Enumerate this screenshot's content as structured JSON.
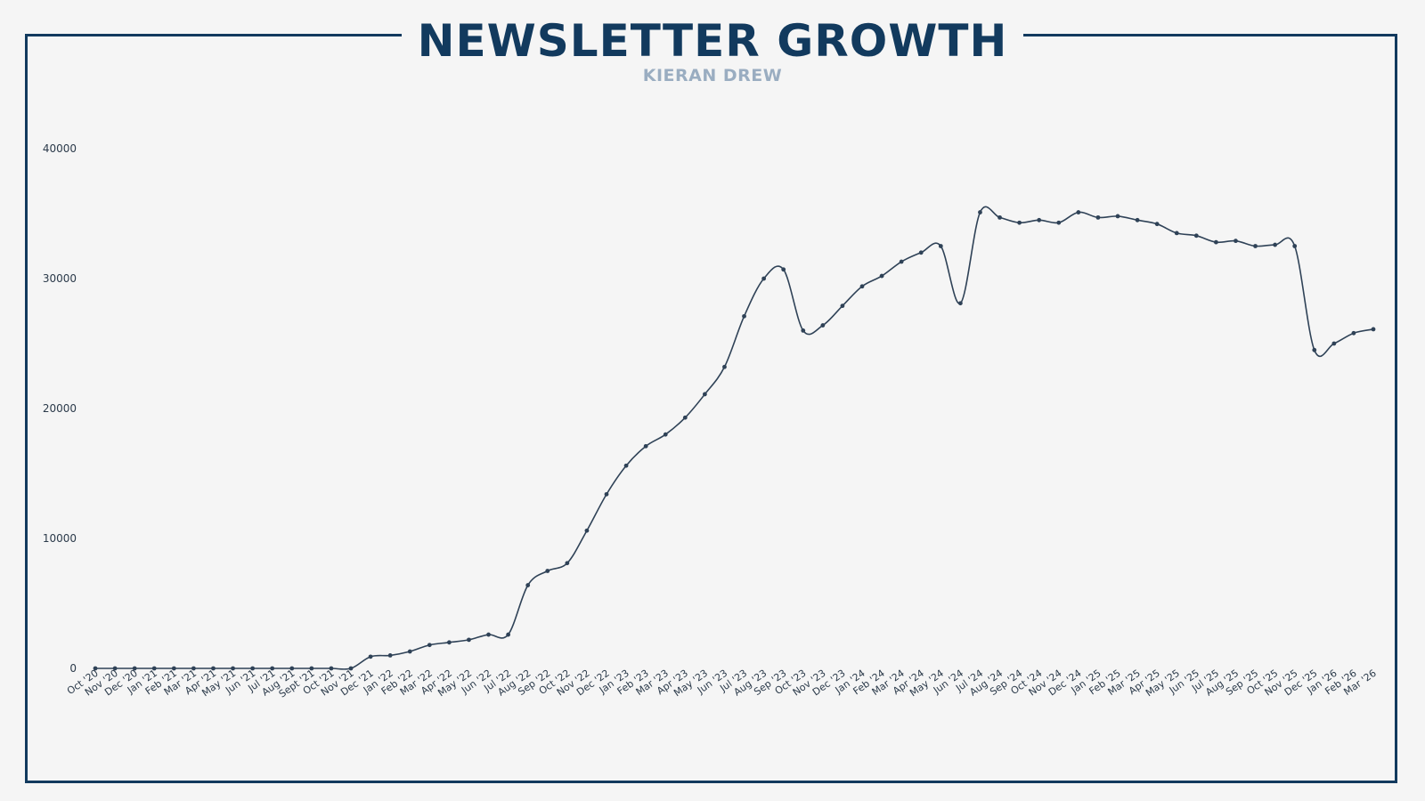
{
  "header": {
    "title": "NEWSLETTER GROWTH",
    "subtitle": "KIERAN DREW"
  },
  "colors": {
    "background": "#f5f5f5",
    "frame": "#123a5e",
    "title": "#123a5e",
    "subtitle": "#9aadc1",
    "line": "#2f4257"
  },
  "chart_data": {
    "type": "line",
    "title": "NEWSLETTER GROWTH",
    "subtitle": "KIERAN DREW",
    "xlabel": "",
    "ylabel": "",
    "ylim": [
      0,
      40000
    ],
    "yticks": [
      0,
      10000,
      20000,
      30000,
      40000
    ],
    "grid": false,
    "legend": "none",
    "categories": [
      "Oct '20",
      "Nov '20",
      "Dec '20",
      "Jan '21",
      "Feb '21",
      "Mar '21",
      "Apr '21",
      "May '21",
      "Jun '21",
      "Jul '21",
      "Aug '21",
      "Sept '21",
      "Oct '21",
      "Nov '21",
      "Dec '21",
      "Jan '22",
      "Feb '22",
      "Mar '22",
      "Apr '22",
      "May '22",
      "Jun '22",
      "Jul '22",
      "Aug '22",
      "Sep '22",
      "Oct '22",
      "Nov '22",
      "Dec '22",
      "Jan '23",
      "Feb '23",
      "Mar '23",
      "Apr '23",
      "May '23",
      "Jun '23",
      "Jul '23",
      "Aug '23",
      "Sep '23",
      "Oct '23",
      "Nov '23",
      "Dec '23",
      "Jan '24",
      "Feb '24",
      "Mar '24",
      "Apr '24",
      "May '24",
      "Jun '24",
      "Jul '24",
      "Aug '24",
      "Sep '24",
      "Oct '24",
      "Nov '24",
      "Dec '24",
      "Jan '25",
      "Feb '25",
      "Mar '25",
      "Apr '25",
      "May '25",
      "Jun '25",
      "Jul '25",
      "Aug '25",
      "Sep '25",
      "Oct '25",
      "Nov '25",
      "Dec '25",
      "Jan '26",
      "Feb '26",
      "Mar '26"
    ],
    "series": [
      {
        "values": [
          0,
          0,
          0,
          0,
          0,
          0,
          0,
          0,
          0,
          0,
          0,
          0,
          0,
          0,
          900,
          1000,
          1300,
          1800,
          2000,
          2200,
          2600,
          2600,
          6400,
          7500,
          8100,
          10600,
          13400,
          15600,
          17100,
          18000,
          19300,
          21100,
          23200,
          27100,
          30000,
          30700,
          26000,
          26400,
          27900,
          29400,
          30200,
          31300,
          32000,
          32500,
          28100,
          35100,
          34700,
          34300,
          34500,
          34300,
          35100,
          34700,
          34800,
          34500,
          34200,
          33500,
          33300,
          32800,
          32900,
          32500,
          32600,
          32500,
          24500,
          25000,
          25800,
          26100
        ]
      }
    ]
  }
}
